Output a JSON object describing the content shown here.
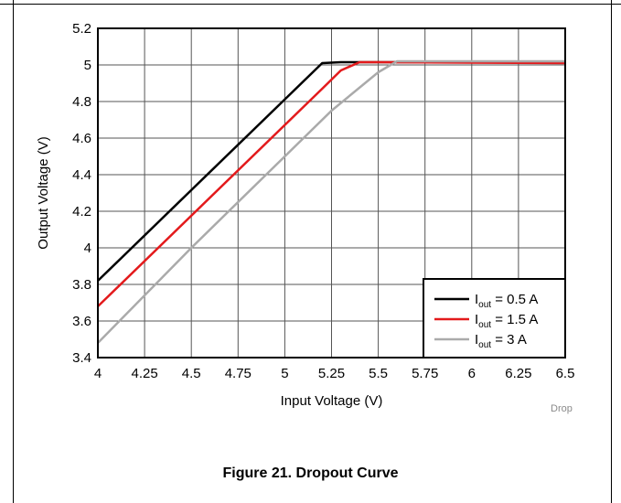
{
  "figure_caption": "Figure 21. Dropout Curve",
  "watermark": "Drop",
  "chart_data": {
    "type": "line",
    "title": "",
    "xlabel": "Input Voltage (V)",
    "ylabel": "Output Voltage (V)",
    "xlim": [
      4,
      6.5
    ],
    "ylim": [
      3.4,
      5.2
    ],
    "xticks": [
      "4",
      "4.25",
      "4.5",
      "4.75",
      "5",
      "5.25",
      "5.5",
      "5.75",
      "6",
      "6.25",
      "6.5"
    ],
    "yticks": [
      "3.4",
      "3.6",
      "3.8",
      "4",
      "4.2",
      "4.4",
      "4.6",
      "4.8",
      "5",
      "5.2"
    ],
    "grid": true,
    "legend_position": "bottom-right",
    "series": [
      {
        "label_main": "I",
        "label_sub": "out",
        "label_rest": " = 0.5 A",
        "color": "#000000",
        "x": [
          4.0,
          5.2,
          5.3,
          6.5
        ],
        "y": [
          3.82,
          5.01,
          5.015,
          5.015
        ]
      },
      {
        "label_main": "I",
        "label_sub": "out",
        "label_rest": " = 1.5 A",
        "color": "#e31a1c",
        "x": [
          4.0,
          5.2,
          5.3,
          5.4,
          5.5,
          6.5
        ],
        "y": [
          3.68,
          4.87,
          4.97,
          5.015,
          5.015,
          5.01
        ]
      },
      {
        "label_main": "I",
        "label_sub": "out",
        "label_rest": " = 3 A",
        "color": "#aaaaaa",
        "x": [
          4.0,
          4.5,
          5.0,
          5.25,
          5.5,
          5.6,
          6.5
        ],
        "y": [
          3.48,
          4.0,
          4.5,
          4.75,
          4.96,
          5.02,
          5.02
        ]
      }
    ]
  }
}
